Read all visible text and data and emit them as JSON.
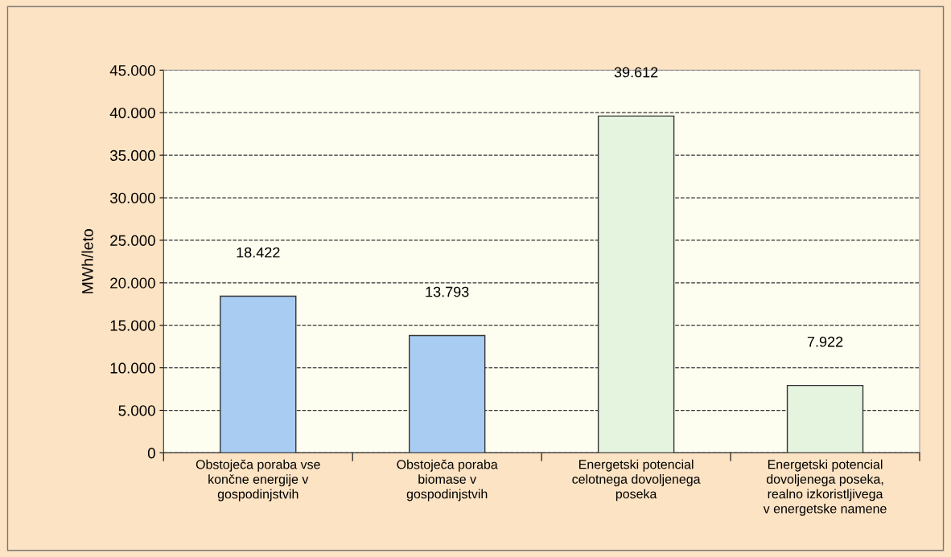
{
  "chart_data": {
    "type": "bar",
    "ylabel": "MWh/leto",
    "categories": [
      "Obstoječa poraba vse končne energije v gospodinjstvih",
      "Obstoječa poraba biomase v gospodinjstvih",
      "Energetski potencial celotnega dovoljenega poseka",
      "Energetski potencial dovoljenega poseka, realno izkoristljivega v energetske namene"
    ],
    "values": [
      18422,
      13793,
      39612,
      7922
    ],
    "colors": [
      "#a9cdf2",
      "#a9cdf2",
      "#e4f4de",
      "#e4f4de"
    ],
    "value_labels": [
      "18.422",
      "13.793",
      "39.612",
      "7.922"
    ],
    "ylim": [
      0,
      45000
    ],
    "yticks": [
      0,
      {
        "value": 5000,
        "label": "5.000"
      },
      {
        "value": 10000,
        "label": "10.000"
      },
      {
        "value": 15000,
        "label": "15.000"
      },
      {
        "value": 20000,
        "label": "20.000"
      },
      {
        "value": 25000,
        "label": "25.000"
      },
      {
        "value": 30000,
        "label": "30.000"
      },
      {
        "value": 35000,
        "label": "35.000"
      },
      {
        "value": 40000,
        "label": "40.000"
      },
      {
        "value": 45000,
        "label": "45.000"
      }
    ],
    "grid": "y",
    "line_style": "dashed"
  }
}
